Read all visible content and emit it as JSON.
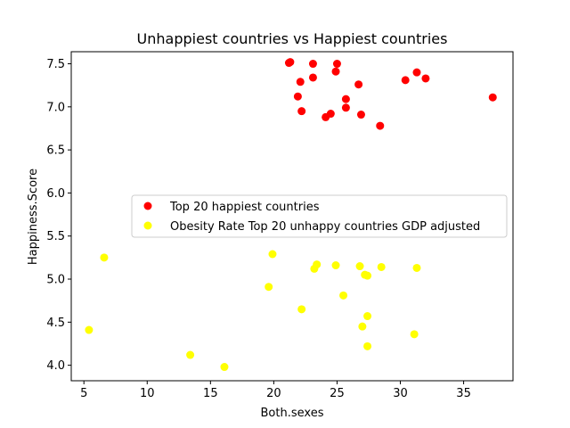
{
  "chart_data": {
    "type": "scatter",
    "title": "Unhappiest countries vs Happiest countries",
    "xlabel": "Both.sexes",
    "ylabel": "Happiness.Score",
    "xlim": [
      4.0,
      38.9
    ],
    "ylim": [
      3.82,
      7.64
    ],
    "xticks": [
      5,
      10,
      15,
      20,
      25,
      30,
      35
    ],
    "xtick_labels": [
      "5",
      "10",
      "15",
      "20",
      "25",
      "30",
      "35"
    ],
    "yticks": [
      4.0,
      4.5,
      5.0,
      5.5,
      6.0,
      6.5,
      7.0,
      7.5
    ],
    "ytick_labels": [
      "4.0",
      "4.5",
      "5.0",
      "5.5",
      "6.0",
      "6.5",
      "7.0",
      "7.5"
    ],
    "grid": false,
    "legend_position": "center",
    "series": [
      {
        "name": "Top 20 happiest countries",
        "color": "#ff0000",
        "points": [
          [
            21.3,
            7.52
          ],
          [
            21.2,
            7.51
          ],
          [
            23.1,
            7.5
          ],
          [
            25.0,
            7.5
          ],
          [
            24.9,
            7.41
          ],
          [
            31.3,
            7.4
          ],
          [
            23.1,
            7.34
          ],
          [
            32.0,
            7.33
          ],
          [
            30.4,
            7.31
          ],
          [
            22.1,
            7.29
          ],
          [
            26.7,
            7.26
          ],
          [
            21.9,
            7.12
          ],
          [
            37.3,
            7.11
          ],
          [
            25.7,
            7.09
          ],
          [
            25.7,
            6.99
          ],
          [
            22.2,
            6.95
          ],
          [
            24.5,
            6.92
          ],
          [
            26.9,
            6.91
          ],
          [
            24.1,
            6.88
          ],
          [
            28.4,
            6.78
          ]
        ]
      },
      {
        "name": "Obesity Rate Top 20 unhappy countries GDP adjusted",
        "color": "#ffff00",
        "points": [
          [
            19.9,
            5.29
          ],
          [
            6.6,
            5.25
          ],
          [
            23.4,
            5.17
          ],
          [
            24.9,
            5.16
          ],
          [
            26.8,
            5.15
          ],
          [
            28.5,
            5.14
          ],
          [
            31.3,
            5.13
          ],
          [
            23.2,
            5.12
          ],
          [
            27.2,
            5.05
          ],
          [
            27.4,
            5.04
          ],
          [
            19.6,
            4.91
          ],
          [
            25.5,
            4.81
          ],
          [
            22.2,
            4.65
          ],
          [
            27.4,
            4.57
          ],
          [
            27.0,
            4.45
          ],
          [
            5.4,
            4.41
          ],
          [
            31.1,
            4.36
          ],
          [
            27.4,
            4.22
          ],
          [
            13.4,
            4.12
          ],
          [
            16.1,
            3.98
          ]
        ]
      }
    ]
  }
}
